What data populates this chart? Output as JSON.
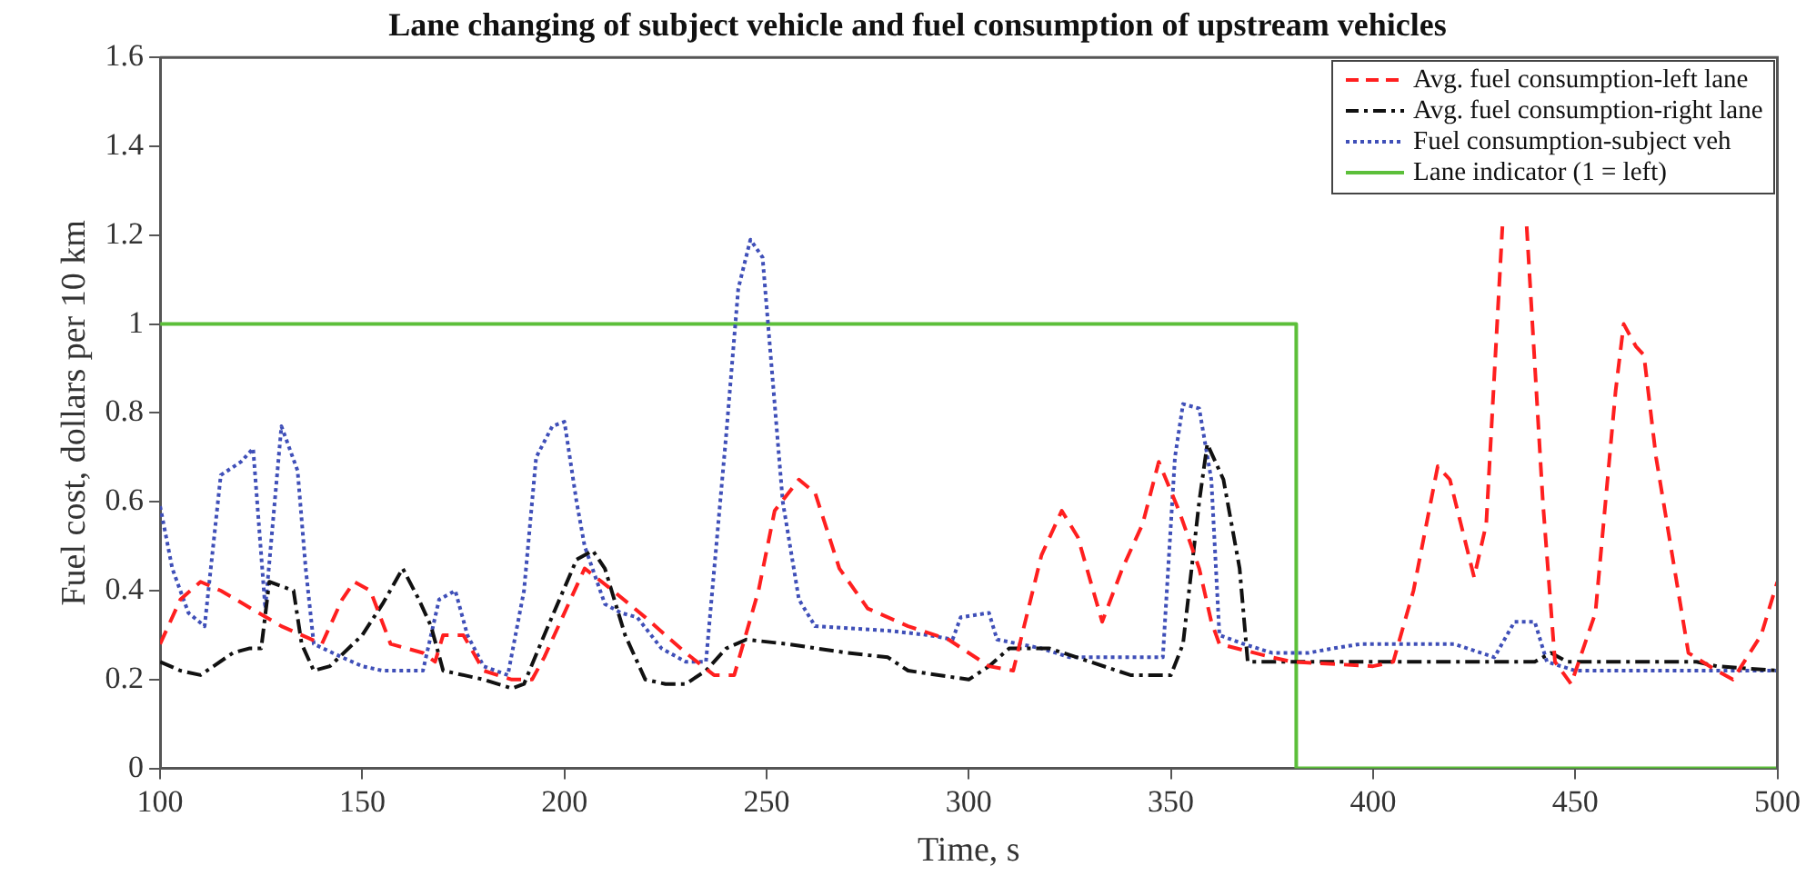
{
  "chart_data": {
    "type": "line",
    "title": "Lane changing of subject vehicle and fuel consumption of upstream vehicles",
    "xlabel": "Time, s",
    "ylabel": "Fuel cost, dollars per 10 km",
    "xlim": [
      100,
      500
    ],
    "xticks": [
      100,
      150,
      200,
      250,
      300,
      350,
      400,
      450,
      500
    ],
    "ylim": [
      0,
      1.6
    ],
    "yticks": [
      0,
      0.2,
      0.4,
      0.6,
      0.8,
      1,
      1.2,
      1.4,
      1.6
    ],
    "grid": false,
    "legend": "top right",
    "marker": "none",
    "series": [
      {
        "name": "Avg. fuel consumption-left lane",
        "color": "#ff1f1f",
        "line_style": "dashed",
        "x": [
          100,
          105,
          110,
          115,
          130,
          140,
          145,
          148,
          152,
          157,
          165,
          168,
          170,
          175,
          180,
          187,
          192,
          195,
          205,
          212,
          220,
          230,
          237,
          242,
          248,
          252,
          258,
          262,
          268,
          275,
          285,
          295,
          300,
          305,
          311,
          318,
          323,
          327,
          333,
          338,
          343,
          347,
          352,
          357,
          360,
          362,
          375,
          380,
          400,
          405,
          410,
          416,
          419,
          425,
          428,
          432,
          435,
          438,
          442,
          445,
          449,
          455,
          460,
          462,
          465,
          467,
          470,
          478,
          485,
          489,
          496,
          500
        ],
        "values": [
          0.28,
          0.38,
          0.42,
          0.4,
          0.32,
          0.28,
          0.38,
          0.42,
          0.4,
          0.28,
          0.26,
          0.24,
          0.3,
          0.3,
          0.22,
          0.2,
          0.2,
          0.25,
          0.45,
          0.4,
          0.34,
          0.26,
          0.21,
          0.21,
          0.4,
          0.58,
          0.65,
          0.62,
          0.45,
          0.36,
          0.32,
          0.29,
          0.26,
          0.23,
          0.22,
          0.48,
          0.58,
          0.52,
          0.33,
          0.45,
          0.55,
          0.69,
          0.58,
          0.45,
          0.33,
          0.28,
          0.25,
          0.24,
          0.23,
          0.24,
          0.4,
          0.68,
          0.65,
          0.43,
          0.55,
          1.22,
          null,
          1.22,
          0.6,
          0.24,
          0.19,
          0.35,
          0.85,
          1,
          0.95,
          0.93,
          0.7,
          0.26,
          0.22,
          0.2,
          0.3,
          0.42
        ]
      },
      {
        "name": "Avg. fuel consumption-right lane",
        "color": "#111111",
        "line_style": "dashdot",
        "x": [
          100,
          105,
          110,
          118,
          122,
          125,
          127,
          133,
          135,
          138,
          142,
          150,
          155,
          160,
          164,
          167,
          170,
          180,
          187,
          190,
          195,
          203,
          207,
          210,
          215,
          220,
          225,
          230,
          235,
          240,
          245,
          255,
          270,
          280,
          285,
          300,
          305,
          310,
          320,
          330,
          340,
          350,
          353,
          357,
          359,
          363,
          367,
          369,
          380,
          440,
          444,
          448,
          480,
          485,
          500
        ],
        "values": [
          0.24,
          0.22,
          0.21,
          0.26,
          0.27,
          0.27,
          0.42,
          0.4,
          0.28,
          0.22,
          0.23,
          0.3,
          0.37,
          0.45,
          0.38,
          0.32,
          0.22,
          0.2,
          0.18,
          0.19,
          0.3,
          0.47,
          0.49,
          0.45,
          0.3,
          0.2,
          0.19,
          0.19,
          0.22,
          0.27,
          0.29,
          0.28,
          0.26,
          0.25,
          0.22,
          0.2,
          0.23,
          0.27,
          0.27,
          0.24,
          0.21,
          0.21,
          0.28,
          0.6,
          0.73,
          0.65,
          0.45,
          0.24,
          0.24,
          0.24,
          0.26,
          0.24,
          0.24,
          0.23,
          0.22
        ]
      },
      {
        "name": "Fuel consumption-subject veh",
        "color": "#3f4fb8",
        "line_style": "dotted",
        "x": [
          100,
          103,
          107,
          111,
          115,
          120,
          123,
          126,
          130,
          134,
          136,
          138,
          145,
          150,
          155,
          165,
          169,
          173,
          176,
          180,
          186,
          190,
          193,
          197,
          200,
          203,
          205,
          210,
          214,
          218,
          224,
          230,
          235,
          240,
          243,
          246,
          249,
          254,
          258,
          262,
          280,
          290,
          296,
          298,
          305,
          307,
          318,
          325,
          330,
          345,
          348,
          351,
          353,
          357,
          360,
          362,
          368,
          375,
          384,
          390,
          397,
          420,
          430,
          435,
          440,
          443,
          450,
          500
        ],
        "values": [
          0.59,
          0.45,
          0.35,
          0.32,
          0.66,
          0.69,
          0.72,
          0.36,
          0.77,
          0.67,
          0.45,
          0.28,
          0.25,
          0.23,
          0.22,
          0.22,
          0.38,
          0.4,
          0.3,
          0.23,
          0.21,
          0.4,
          0.7,
          0.77,
          0.78,
          0.6,
          0.5,
          0.37,
          0.35,
          0.34,
          0.27,
          0.24,
          0.24,
          0.75,
          1.08,
          1.19,
          1.15,
          0.6,
          0.38,
          0.32,
          0.31,
          0.3,
          0.29,
          0.34,
          0.35,
          0.29,
          0.27,
          0.25,
          0.25,
          0.25,
          0.25,
          0.7,
          0.82,
          0.81,
          0.65,
          0.3,
          0.28,
          0.26,
          0.26,
          0.27,
          0.28,
          0.28,
          0.25,
          0.33,
          0.33,
          0.24,
          0.22,
          0.22
        ]
      },
      {
        "name": "Lane indicator (1 = left)",
        "color": "#5cbf3a",
        "line_style": "solid",
        "x": [
          100,
          381,
          381,
          500
        ],
        "values": [
          1,
          1,
          0,
          0
        ]
      }
    ]
  }
}
